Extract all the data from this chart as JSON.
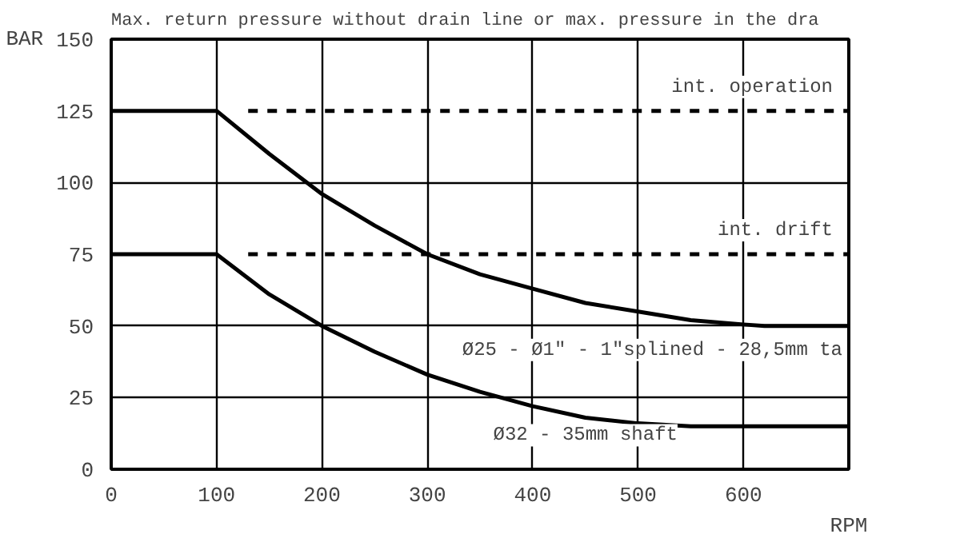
{
  "chart_data": {
    "type": "line",
    "title": "Max. return pressure without drain line or max. pressure in the dra",
    "xlabel": "RPM",
    "ylabel": "BAR",
    "series": [
      {
        "name": "Ø25 - Ø1\" - 1\"splined - 28,5mm ta",
        "color": "#000000",
        "x": [
          0,
          100,
          150,
          200,
          250,
          300,
          350,
          400,
          450,
          500,
          550,
          600,
          620,
          700
        ],
        "values": [
          125,
          125,
          110,
          96,
          85,
          75,
          68,
          63,
          58,
          55,
          52,
          50.5,
          50,
          50
        ]
      },
      {
        "name": "Ø32 - 35mm shaft",
        "color": "#000000",
        "x": [
          0,
          100,
          150,
          200,
          250,
          300,
          350,
          400,
          450,
          500,
          550,
          700
        ],
        "values": [
          75,
          75,
          61,
          50,
          41,
          33,
          27,
          22,
          18,
          16,
          15,
          15
        ]
      },
      {
        "name": "int. operation",
        "color": "#000000",
        "line_style": "dashed",
        "x": [
          130,
          700
        ],
        "values": [
          125,
          125
        ]
      },
      {
        "name": "int. drift",
        "color": "#000000",
        "line_style": "dashed",
        "x": [
          130,
          700
        ],
        "values": [
          75,
          75
        ]
      }
    ],
    "xlim": [
      0,
      700
    ],
    "ylim": [
      0,
      150
    ],
    "xticks": [
      0,
      100,
      200,
      300,
      400,
      500,
      600
    ],
    "yticks": [
      0,
      25,
      50,
      75,
      100,
      125,
      150
    ],
    "grid": true,
    "legend": false,
    "marker": "none",
    "line_style": "solid"
  }
}
